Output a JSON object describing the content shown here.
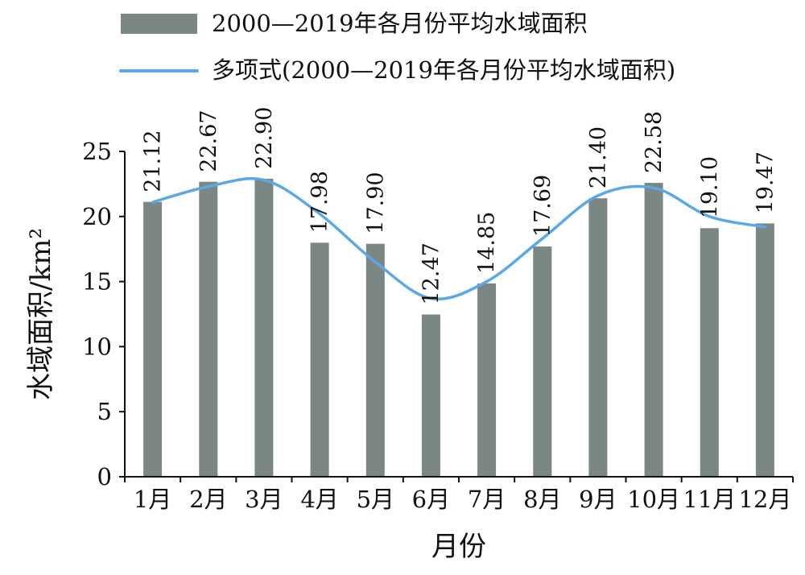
{
  "chart_data": {
    "type": "bar",
    "categories": [
      "1月",
      "2月",
      "3月",
      "4月",
      "5月",
      "6月",
      "7月",
      "8月",
      "9月",
      "10月",
      "11月",
      "12月"
    ],
    "series": [
      {
        "name": "2000—2019年各月份平均水域面积",
        "type": "bar",
        "values": [
          21.12,
          22.67,
          22.9,
          17.98,
          17.9,
          12.47,
          14.85,
          17.69,
          21.4,
          22.58,
          19.1,
          19.47
        ],
        "value_labels": [
          "21.12",
          "22.67",
          "22.90",
          "17.98",
          "17.90",
          "12.47",
          "14.85",
          "17.69",
          "21.40",
          "22.58",
          "19.10",
          "19.47"
        ]
      },
      {
        "name": "多项式(2000—2019年各月份平均水域面积)",
        "type": "polynomial-trendline",
        "values": [
          21.1,
          22.3,
          22.8,
          20.2,
          16.5,
          13.7,
          15.0,
          18.3,
          21.6,
          22.2,
          20.0,
          19.2
        ]
      }
    ],
    "xlabel": "月份",
    "ylabel": "水域面积/km²",
    "ylim": [
      0,
      25
    ],
    "yticks": [
      0,
      5,
      10,
      15,
      20,
      25
    ],
    "legend_position": "top-left",
    "grid": false,
    "colors": {
      "bar": "#7a8784",
      "line": "#5aa9e6",
      "axis": "#111111"
    }
  }
}
